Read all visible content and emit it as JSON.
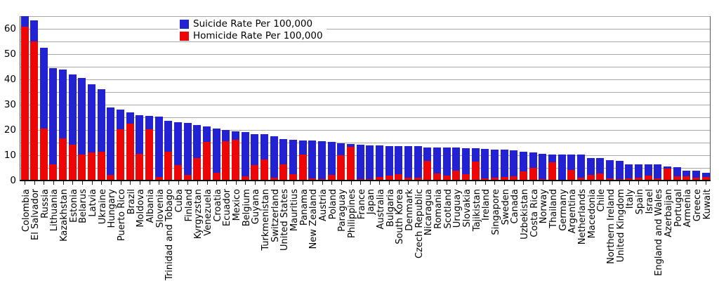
{
  "chart_data": {
    "type": "bar",
    "stacked": true,
    "title": "",
    "xlabel": "",
    "ylabel": "",
    "ylim": [
      0,
      65
    ],
    "grid_step": 5,
    "yticks": [
      0,
      10,
      20,
      30,
      40,
      50,
      60
    ],
    "grid": "on",
    "legend_position": "top-center",
    "legend": [
      {
        "label": "Suicide Rate Per 100,000",
        "color": "#2222d2"
      },
      {
        "label": "Homicide Rate Per 100,000",
        "color": "#ee0505"
      }
    ],
    "categories": [
      "Colombia",
      "El Salvador",
      "Russia",
      "Lithuania",
      "Kazakhstan",
      "Estonia",
      "Belarus",
      "Latvia",
      "Ukraine",
      "Hungary",
      "Puerto Rico",
      "Brazil",
      "Moldova",
      "Albania",
      "Slovenia",
      "Trinidad and Tobago",
      "Cuba",
      "Finland",
      "Kyrgyzstan",
      "Venezuela",
      "Croatia",
      "Ecuador",
      "Mexico",
      "Belgium",
      "Guyana",
      "Turkmenistan",
      "Switzerland",
      "United States",
      "Mauritius",
      "Panama",
      "New Zealand",
      "Austria",
      "Poland",
      "Paraguay",
      "Philippines",
      "France",
      "Japan",
      "Australia",
      "Bulgaria",
      "South Korea",
      "Denmark",
      "Czech Republic",
      "Nicaragua",
      "Romania",
      "Scotland",
      "Uruguay",
      "Slovakia",
      "Tajikistan",
      "Ireland",
      "Singapore",
      "Sweden",
      "Canada",
      "Uzbekistan",
      "Costa Rica",
      "Norway",
      "Thailand",
      "Germany",
      "Argentina",
      "Netherlands",
      "Macedonia",
      "Chile",
      "Northern Ireland",
      "United Kingdom",
      "Italy",
      "Spain",
      "Israel",
      "England and Wales",
      "Azerbaijan",
      "Portugal",
      "Armenia",
      "Greece",
      "Kuwait"
    ],
    "series": [
      {
        "name": "Homicide Rate Per 100,000",
        "color": "#ee0505",
        "stack_order": "bottom",
        "values": [
          61.0,
          55.2,
          20.7,
          6.5,
          16.8,
          14.3,
          10.3,
          11.2,
          11.4,
          2.2,
          20.3,
          22.6,
          10.5,
          20.2,
          1.3,
          11.5,
          6.0,
          2.3,
          8.8,
          15.2,
          3.0,
          15.6,
          16.0,
          1.8,
          6.0,
          8.3,
          1.1,
          6.5,
          2.6,
          10.4,
          0.8,
          0.5,
          2.1,
          10.0,
          13.3,
          0.6,
          0.6,
          1.3,
          1.9,
          2.4,
          1.0,
          1.2,
          7.9,
          2.9,
          1.9,
          4.0,
          2.4,
          7.6,
          0.7,
          1.2,
          1.4,
          1.7,
          3.6,
          4.9,
          0.6,
          7.2,
          0.4,
          4.2,
          1.0,
          2.2,
          2.8,
          0.8,
          0.6,
          0.8,
          1.0,
          1.9,
          0.8,
          4.8,
          1.8,
          1.8,
          1.0,
          1.5
        ]
      },
      {
        "name": "Suicide Rate Per 100,000",
        "color": "#2222d2",
        "stack_order": "top",
        "values": [
          4.2,
          8.3,
          31.8,
          38.1,
          27.1,
          27.8,
          30.4,
          26.8,
          24.7,
          26.7,
          7.7,
          4.3,
          15.5,
          5.3,
          24.0,
          12.2,
          17.0,
          20.6,
          13.2,
          6.2,
          17.5,
          4.4,
          3.4,
          17.3,
          12.4,
          10.1,
          16.3,
          9.9,
          13.5,
          5.4,
          15.0,
          15.1,
          13.2,
          4.8,
          1.3,
          13.5,
          13.3,
          12.6,
          11.8,
          11.3,
          12.5,
          12.3,
          5.3,
          10.3,
          11.1,
          9.0,
          10.4,
          5.1,
          11.8,
          11.1,
          10.9,
          10.4,
          7.8,
          6.3,
          10.1,
          3.2,
          10.0,
          6.2,
          9.3,
          6.8,
          6.1,
          7.4,
          7.1,
          5.7,
          5.5,
          4.5,
          5.5,
          0.9,
          3.4,
          2.2,
          2.8,
          1.6
        ]
      }
    ]
  }
}
